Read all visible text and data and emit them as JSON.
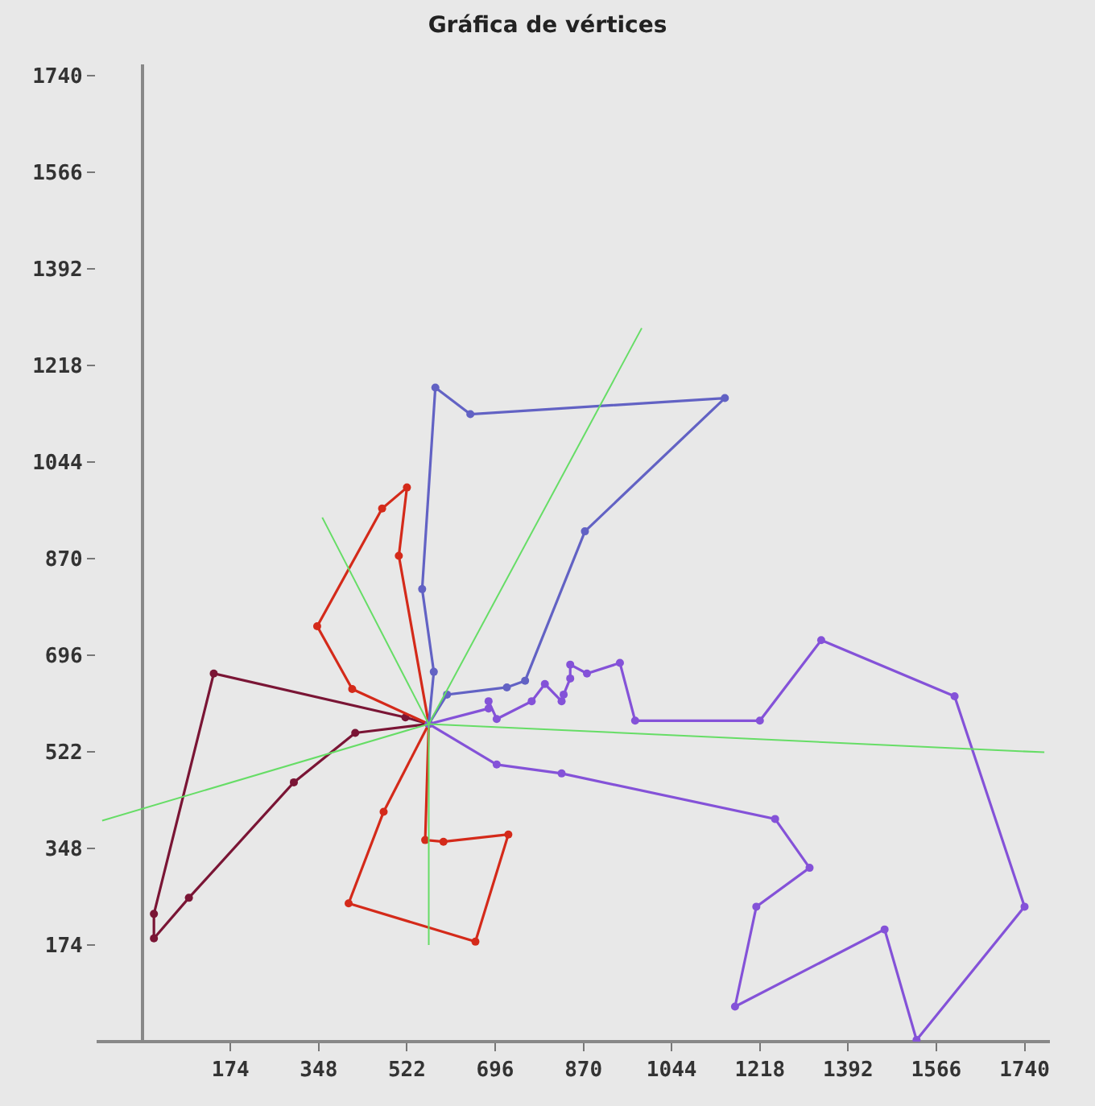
{
  "chart_data": {
    "type": "line",
    "title": "Gráfica de vértices",
    "marker": "circle",
    "grid": false,
    "xlim": [
      -90,
      1790
    ],
    "ylim": [
      0,
      1760
    ],
    "xticks": [
      174,
      348,
      522,
      696,
      870,
      1044,
      1218,
      1392,
      1566,
      1740
    ],
    "yticks": [
      174,
      348,
      522,
      696,
      870,
      1044,
      1218,
      1392,
      1566,
      1740
    ],
    "series": [
      {
        "color": "#7a1535",
        "x": [
          565,
          519,
          141,
          23,
          23,
          92,
          299,
          420
        ],
        "values": [
          572,
          584,
          663,
          230,
          186,
          259,
          467,
          556
        ]
      },
      {
        "color": "#7a1535",
        "marker": "none",
        "x": [
          420,
          565
        ],
        "values": [
          556,
          572
        ]
      },
      {
        "color": "#d42a1a",
        "x": [
          414,
          345,
          473,
          522,
          506,
          565,
          558,
          594,
          722,
          657,
          407,
          476
        ],
        "values": [
          635,
          748,
          960,
          998,
          875,
          572,
          363,
          360,
          373,
          180,
          249,
          414
        ]
      },
      {
        "color": "#d42a1a",
        "marker": "none",
        "x": [
          476,
          565
        ],
        "values": [
          414,
          572
        ]
      },
      {
        "color": "#d42a1a",
        "marker": "none",
        "x": [
          565,
          414
        ],
        "values": [
          572,
          635
        ]
      },
      {
        "color": "#6262c4",
        "x": [
          565,
          601,
          719,
          755,
          873,
          1149,
          647,
          578,
          552,
          575
        ],
        "values": [
          572,
          625,
          638,
          650,
          919,
          1159,
          1130,
          1178,
          815,
          666
        ]
      },
      {
        "color": "#6262c4",
        "marker": "none",
        "x": [
          575,
          565
        ],
        "values": [
          666,
          572
        ]
      },
      {
        "color": "#8452d8",
        "x": [
          565,
          683,
          683,
          699,
          768,
          794,
          827,
          831,
          844,
          844,
          877,
          942,
          972,
          1218,
          1339,
          1602,
          1740,
          1527,
          1464,
          1169,
          1211,
          1316,
          1248,
          827,
          699
        ],
        "values": [
          572,
          600,
          613,
          581,
          613,
          644,
          613,
          625,
          654,
          679,
          663,
          682,
          578,
          578,
          723,
          622,
          243,
          3,
          202,
          63,
          243,
          313,
          401,
          483,
          499
        ]
      },
      {
        "color": "#8452d8",
        "marker": "none",
        "x": [
          699,
          565
        ],
        "values": [
          499,
          572
        ]
      },
      {
        "color": "#66dd66",
        "marker": "none",
        "x": [
          565,
          -79
        ],
        "values": [
          572,
          398
        ]
      },
      {
        "color": "#66dd66",
        "marker": "none",
        "x": [
          565,
          355
        ],
        "values": [
          572,
          944
        ]
      },
      {
        "color": "#66dd66",
        "marker": "none",
        "x": [
          565,
          985
        ],
        "values": [
          572,
          1285
        ]
      },
      {
        "color": "#66dd66",
        "marker": "none",
        "x": [
          565,
          1779
        ],
        "values": [
          572,
          521
        ]
      },
      {
        "color": "#66dd66",
        "marker": "none",
        "x": [
          565,
          565
        ],
        "values": [
          572,
          174
        ]
      }
    ]
  }
}
